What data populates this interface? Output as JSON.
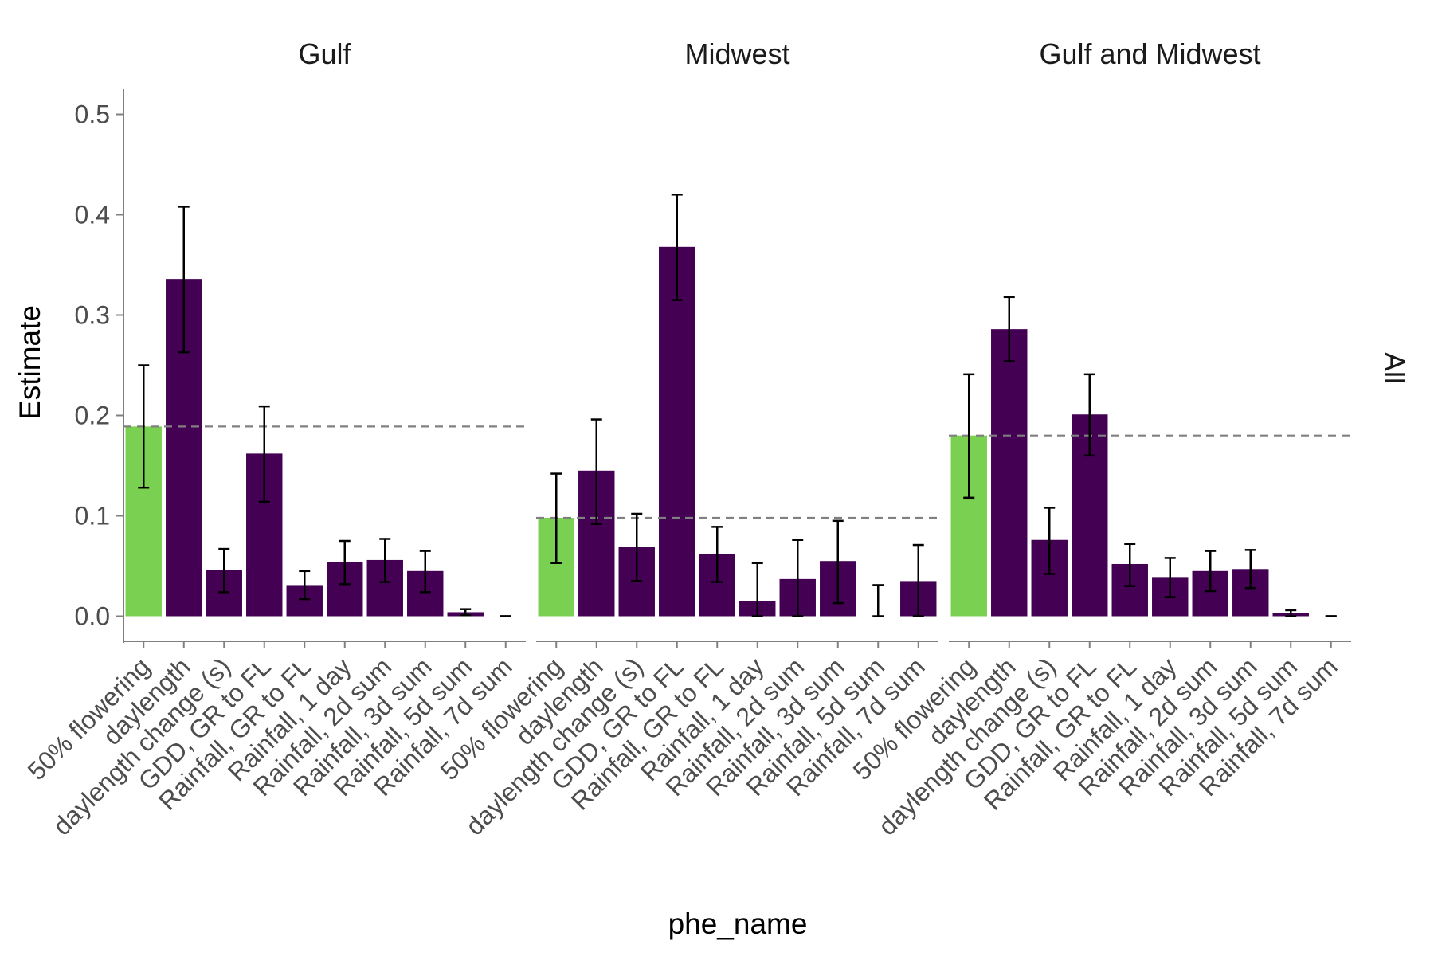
{
  "chart_data": {
    "type": "bar",
    "xlabel": "phe_name",
    "ylabel": "Estimate",
    "ylim": [
      -0.025,
      0.525
    ],
    "yticks": [
      0.0,
      0.1,
      0.2,
      0.3,
      0.4,
      0.5
    ],
    "ytick_labels": [
      "0.0",
      "0.1",
      "0.2",
      "0.3",
      "0.4",
      "0.5"
    ],
    "grid": false,
    "legend": "none",
    "strip_label": "All",
    "categories": [
      "50% flowering",
      "daylength",
      "daylength change (s)",
      "GDD, GR to FL",
      "Rainfall, GR to FL",
      "Rainfall, 1 day",
      "Rainfall, 2d sum",
      "Rainfall, 3d sum",
      "Rainfall, 5d sum",
      "Rainfall, 7d sum"
    ],
    "colors": {
      "highlight": "#7AD151",
      "bar": "#440154",
      "reference_line": "#808080",
      "errorbar": "#000000"
    },
    "facets": [
      {
        "title": "Gulf",
        "reference_line": 0.189,
        "values": [
          0.189,
          0.336,
          0.046,
          0.162,
          0.031,
          0.054,
          0.056,
          0.045,
          0.004,
          0.0
        ],
        "lower": [
          0.128,
          0.263,
          0.024,
          0.114,
          0.017,
          0.032,
          0.034,
          0.024,
          0.001,
          0.0
        ],
        "upper": [
          0.25,
          0.408,
          0.067,
          0.209,
          0.045,
          0.075,
          0.077,
          0.065,
          0.007,
          0.0
        ]
      },
      {
        "title": "Midwest",
        "reference_line": 0.098,
        "values": [
          0.098,
          0.145,
          0.069,
          0.368,
          0.062,
          0.015,
          0.037,
          0.055,
          0.0,
          0.035
        ],
        "lower": [
          0.053,
          0.092,
          0.035,
          0.315,
          0.034,
          0.0,
          0.0,
          0.013,
          0.0,
          0.0
        ],
        "upper": [
          0.142,
          0.196,
          0.102,
          0.42,
          0.089,
          0.053,
          0.076,
          0.095,
          0.031,
          0.071
        ]
      },
      {
        "title": "Gulf and Midwest",
        "reference_line": 0.18,
        "values": [
          0.18,
          0.286,
          0.076,
          0.201,
          0.052,
          0.039,
          0.045,
          0.047,
          0.003,
          0.0
        ],
        "lower": [
          0.118,
          0.254,
          0.042,
          0.16,
          0.03,
          0.019,
          0.025,
          0.028,
          0.0,
          0.0
        ],
        "upper": [
          0.241,
          0.318,
          0.108,
          0.241,
          0.072,
          0.058,
          0.065,
          0.066,
          0.006,
          0.0
        ]
      }
    ]
  }
}
